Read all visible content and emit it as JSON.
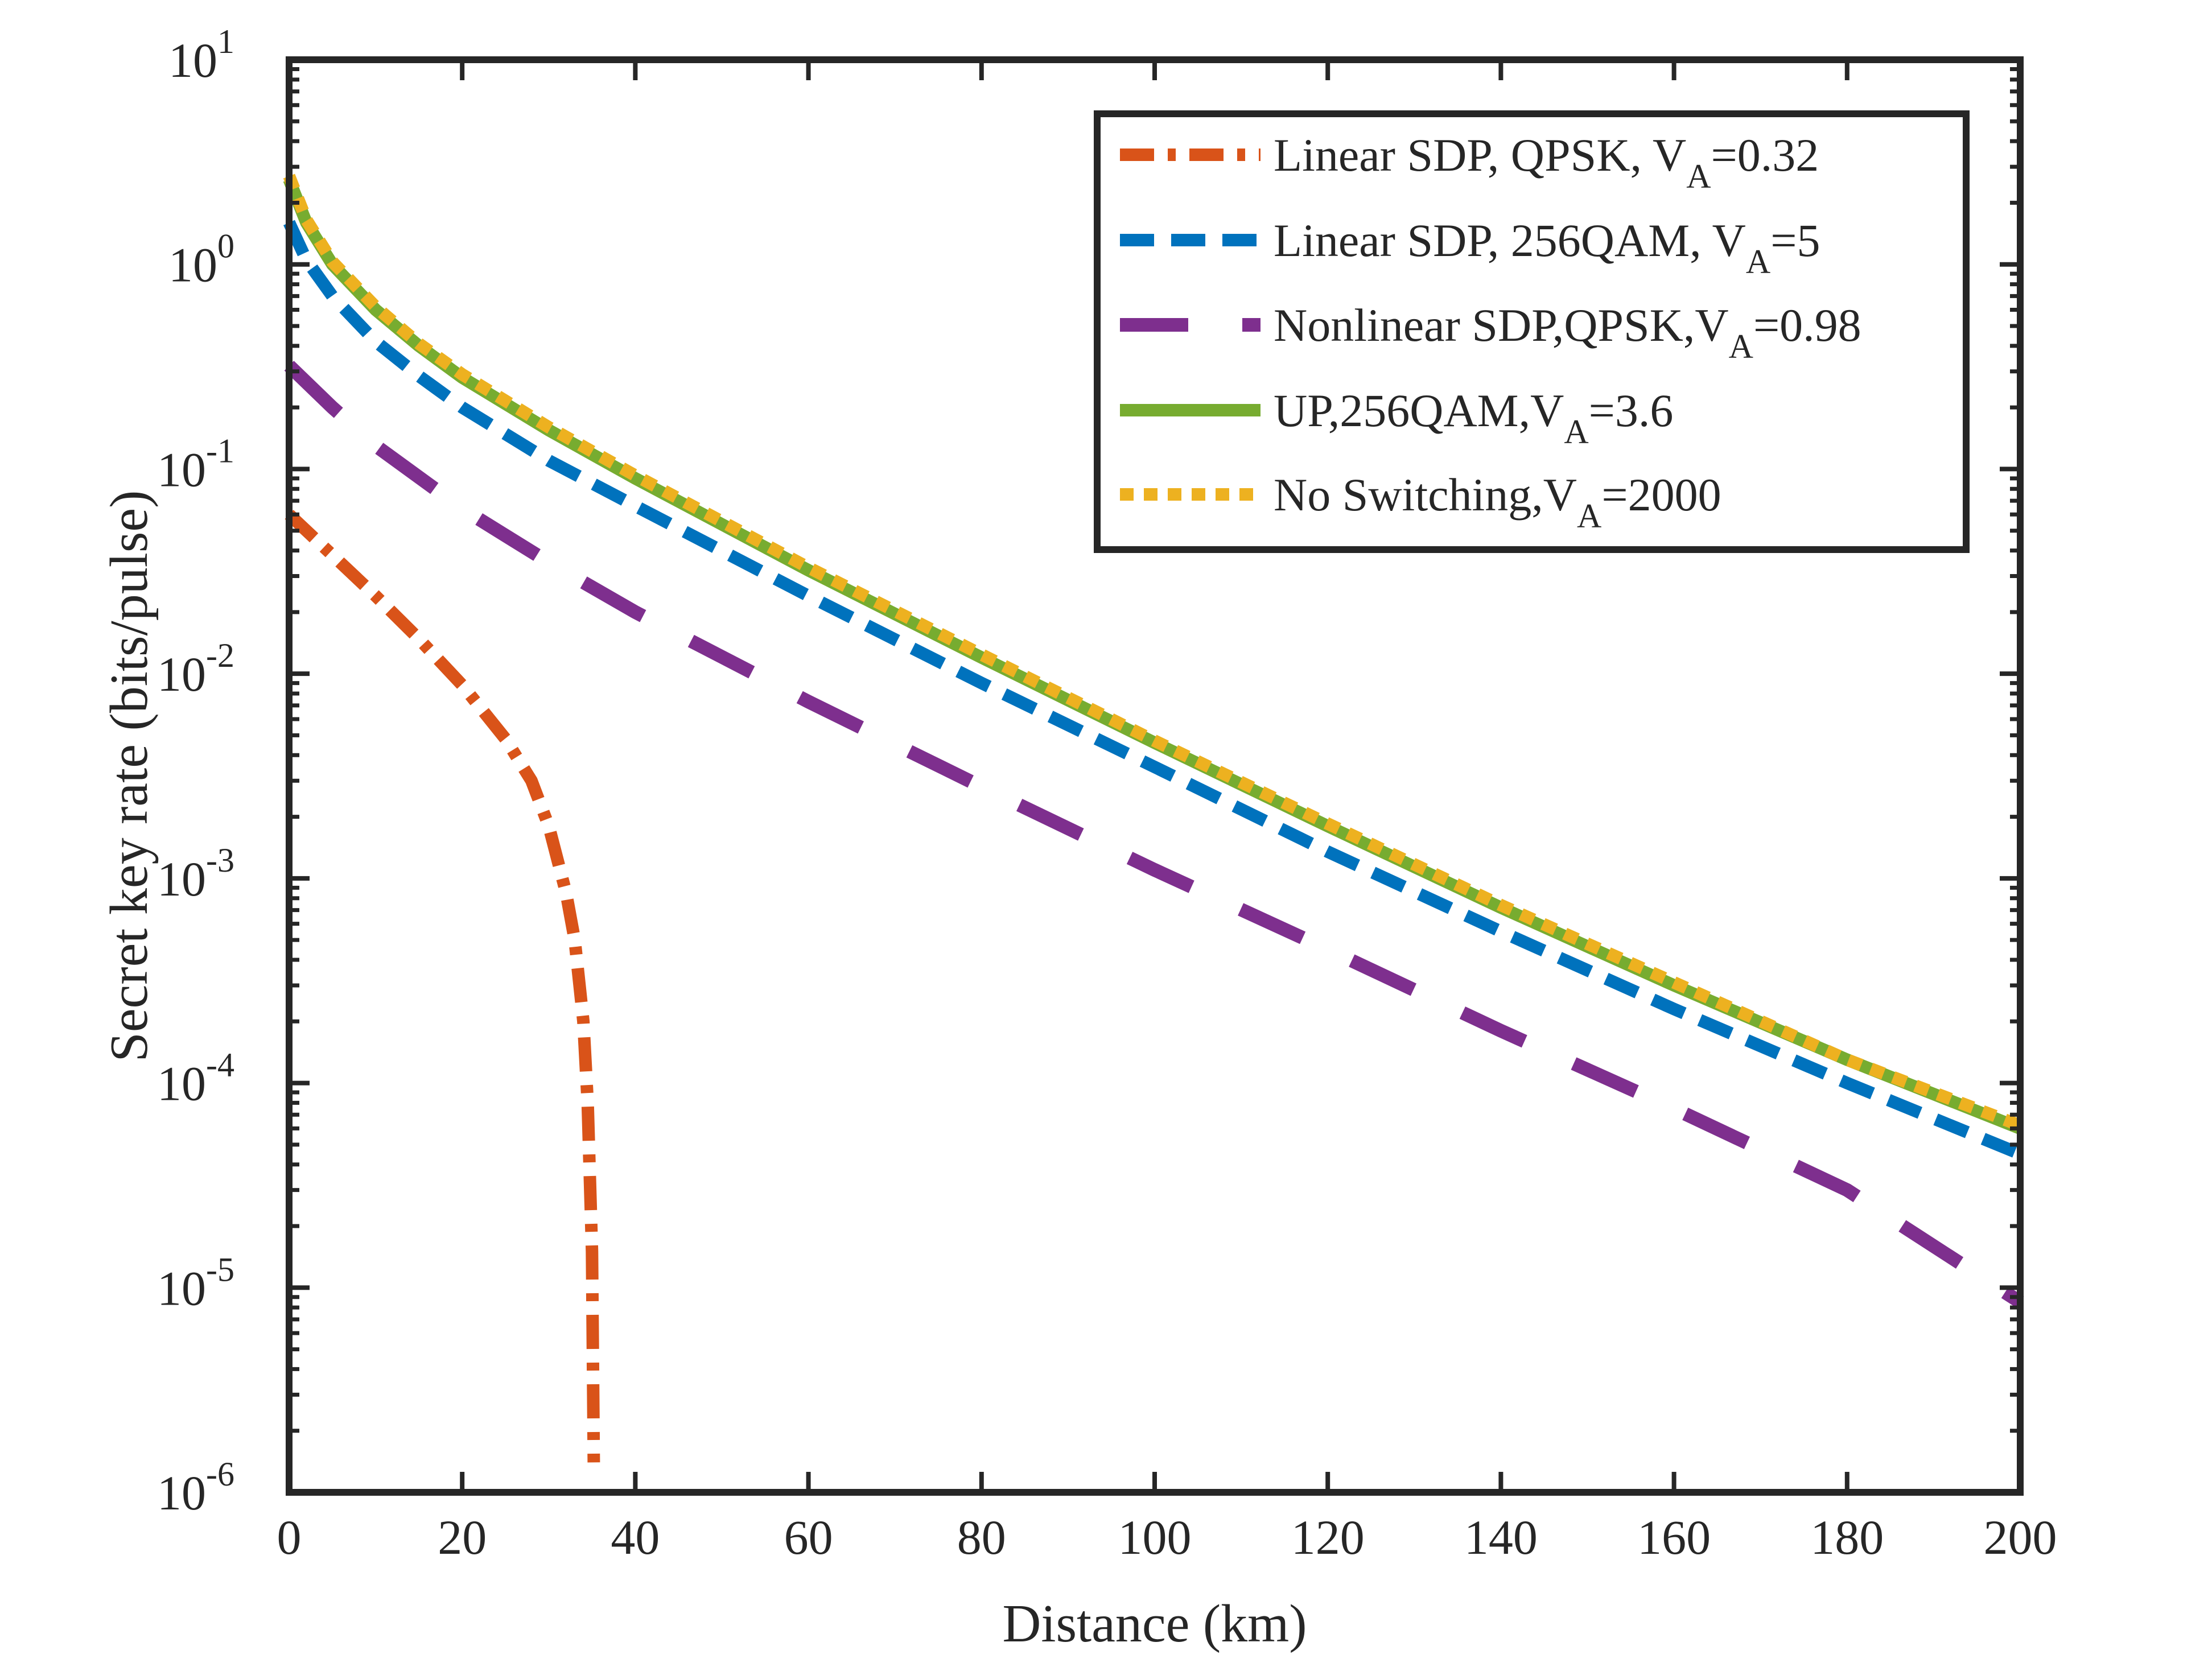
{
  "chart_data": {
    "type": "line",
    "title": "",
    "xlabel": "Distance (km)",
    "ylabel": "Secret key rate (bits/pulse)",
    "xlim": [
      0,
      200
    ],
    "ylim": [
      1e-06,
      10
    ],
    "yscale": "log",
    "grid": false,
    "legend_position": "top-right",
    "x_ticks": [
      0,
      20,
      40,
      60,
      80,
      100,
      120,
      140,
      160,
      180,
      200
    ],
    "y_ticks": [
      {
        "value": 1e-06,
        "base": "10",
        "exp": "-6"
      },
      {
        "value": 1e-05,
        "base": "10",
        "exp": "-5"
      },
      {
        "value": 0.0001,
        "base": "10",
        "exp": "-4"
      },
      {
        "value": 0.001,
        "base": "10",
        "exp": "-3"
      },
      {
        "value": 0.01,
        "base": "10",
        "exp": "-2"
      },
      {
        "value": 0.1,
        "base": "10",
        "exp": "-1"
      },
      {
        "value": 1,
        "base": "10",
        "exp": "0"
      },
      {
        "value": 10,
        "base": "10",
        "exp": "1"
      }
    ],
    "series": [
      {
        "name": "Linear SDP, QPSK, V_A=0.32",
        "legend": {
          "prefix": "Linear SDP, QPSK, V",
          "sub": "A",
          "suffix": "=0.32"
        },
        "color": "#d95319",
        "style": "dashdot",
        "x": [
          0,
          5,
          10,
          15,
          20,
          25,
          28,
          30,
          32,
          33,
          34,
          34.5,
          35,
          35.2
        ],
        "y": [
          0.06,
          0.038,
          0.024,
          0.0148,
          0.0088,
          0.0048,
          0.003,
          0.0018,
          0.00085,
          0.0005,
          0.0002,
          8e-05,
          1.5e-05,
          1.4e-06
        ]
      },
      {
        "name": "Linear SDP, 256QAM, V_A=5",
        "legend": {
          "prefix": "Linear SDP, 256QAM, V",
          "sub": "A",
          "suffix": "=5"
        },
        "color": "#0072bd",
        "style": "dash",
        "x": [
          0,
          2,
          5,
          10,
          15,
          20,
          30,
          40,
          60,
          80,
          100,
          120,
          140,
          160,
          180,
          200
        ],
        "y": [
          1.6,
          1.05,
          0.7,
          0.42,
          0.285,
          0.2,
          0.11,
          0.066,
          0.024,
          0.009,
          0.0035,
          0.00135,
          0.00055,
          0.00023,
          0.0001,
          4.5e-05
        ]
      },
      {
        "name": "Nonlinear SDP,QPSK,V_A=0.98",
        "legend": {
          "prefix": "Nonlinear SDP,QPSK,V",
          "sub": "A",
          "suffix": "=0.98"
        },
        "color": "#7e2f8e",
        "style": "longdash",
        "x": [
          0,
          5,
          10,
          20,
          30,
          40,
          60,
          80,
          100,
          120,
          140,
          160,
          180,
          200
        ],
        "y": [
          0.32,
          0.2,
          0.13,
          0.064,
          0.035,
          0.02,
          0.0073,
          0.0028,
          0.0011,
          0.00045,
          0.00018,
          7.5e-05,
          3e-05,
          8.5e-06
        ]
      },
      {
        "name": "UP,256QAM,V_A=3.6",
        "legend": {
          "prefix": "UP,256QAM,V",
          "sub": "A",
          "suffix": "=3.6"
        },
        "color": "#77ac30",
        "style": "solid",
        "x": [
          0,
          2,
          5,
          10,
          15,
          20,
          30,
          40,
          60,
          80,
          100,
          120,
          140,
          160,
          180,
          200
        ],
        "y": [
          2.6,
          1.6,
          1.0,
          0.6,
          0.4,
          0.28,
          0.155,
          0.09,
          0.032,
          0.012,
          0.0046,
          0.0018,
          0.00072,
          0.0003,
          0.00013,
          6e-05
        ]
      },
      {
        "name": "No Switching,V_A=2000",
        "legend": {
          "prefix": "No Switching,V",
          "sub": "A",
          "suffix": "=2000"
        },
        "color": "#edb120",
        "style": "dot",
        "x": [
          0,
          2,
          5,
          10,
          15,
          20,
          30,
          40,
          60,
          80,
          100,
          120,
          140,
          160,
          180,
          200
        ],
        "y": [
          2.7,
          1.65,
          1.03,
          0.62,
          0.41,
          0.29,
          0.16,
          0.093,
          0.033,
          0.0124,
          0.0047,
          0.00185,
          0.00074,
          0.00031,
          0.00013,
          6.2e-05
        ]
      }
    ]
  }
}
